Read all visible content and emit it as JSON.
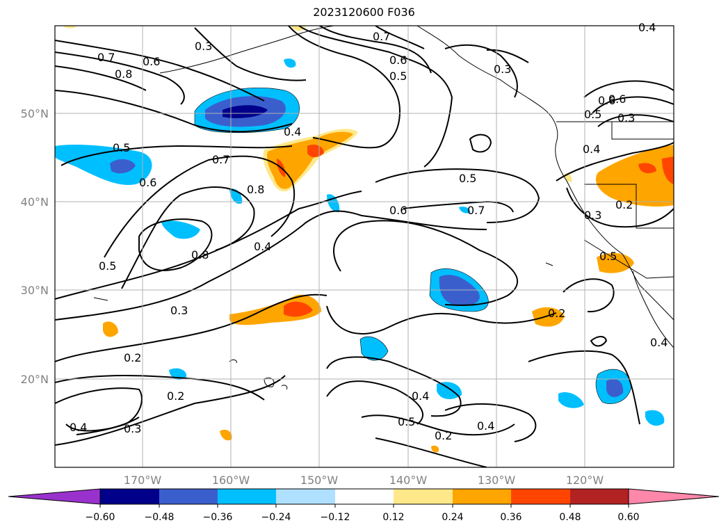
{
  "title": "2023120600 F036",
  "map": {
    "lat_ticks": [
      "20°N",
      "30°N",
      "40°N",
      "50°N"
    ],
    "lon_ticks": [
      "170°W",
      "160°W",
      "150°W",
      "140°W",
      "130°W",
      "120°W"
    ],
    "contour_labels": [
      "0.3",
      "0.7",
      "0.8",
      "0.6",
      "0.7",
      "0.6",
      "0.5",
      "0.3",
      "0.4",
      "0.5",
      "0.6",
      "0.4",
      "0.5",
      "0.6",
      "0.7",
      "0.8",
      "0.5",
      "0.8",
      "0.4",
      "0.6",
      "0.7",
      "0.3",
      "0.5",
      "0.2",
      "0.3",
      "0.2",
      "0.2",
      "0.4",
      "0.3",
      "0.4",
      "0.5",
      "0.2",
      "0.4",
      "0.4",
      "0.5",
      "0.6",
      "0.3",
      "0.2",
      "0.4"
    ],
    "colors": {
      "contour": "#000000",
      "grid": "#b0b0b0",
      "neg_strong": "#00008b",
      "neg_mid": "#3a5fcd",
      "neg_light": "#00bfff",
      "neg_pale": "#b0e0ff",
      "pos_pale": "#ffe88a",
      "pos_light": "#ffa500",
      "pos_mid": "#ff4500"
    }
  },
  "colorbar": {
    "labels": [
      "−0.60",
      "−0.48",
      "−0.36",
      "−0.24",
      "−0.12",
      "0.12",
      "0.24",
      "0.36",
      "0.48",
      "0.60"
    ],
    "colors": [
      "#9932cc",
      "#00008b",
      "#3a5fcd",
      "#00bfff",
      "#b0e0ff",
      "#ffffff",
      "#ffe88a",
      "#ffa500",
      "#ff4500",
      "#b22222",
      "#ff88aa"
    ]
  }
}
